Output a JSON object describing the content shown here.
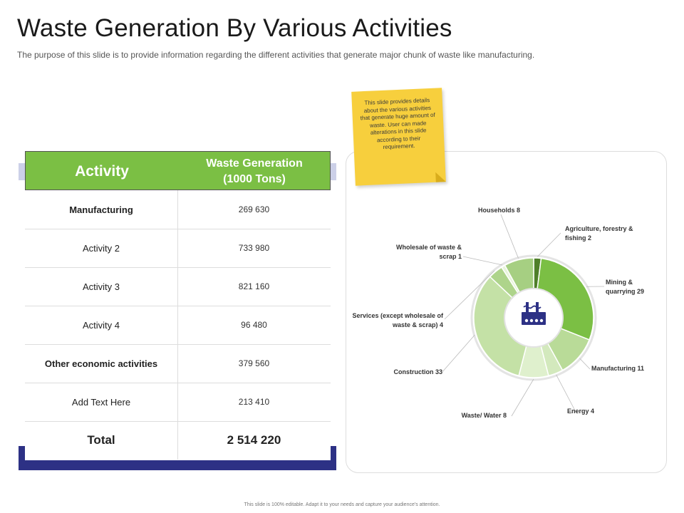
{
  "title": "Waste Generation By Various Activities",
  "subtitle": "The purpose of this slide is to provide information regarding the different activities that generate major chunk of waste like manufacturing.",
  "footer": "This slide is 100% editable. Adapt it to your needs and capture your audience's attention.",
  "note": "This slide provides details about the various activities that generate huge amount of waste. User can made alterations in this slide according to their requirement.",
  "table": {
    "headers": [
      "Activity",
      "Waste Generation\n(1000 Tons)"
    ],
    "rows": [
      {
        "activity": "Manufacturing",
        "value": "269 630",
        "bold": true
      },
      {
        "activity": "Activity 2",
        "value": "733 980",
        "bold": false
      },
      {
        "activity": "Activity 3",
        "value": "821 160",
        "bold": false
      },
      {
        "activity": "Activity 4",
        "value": "96 480",
        "bold": false
      },
      {
        "activity": "Other economic activities",
        "value": "379 560",
        "bold": true
      },
      {
        "activity": "Add Text Here",
        "value": "213 410",
        "bold": false
      }
    ],
    "total": {
      "label": "Total",
      "value": "2 514 220"
    }
  },
  "chart_data": {
    "type": "pie",
    "title": "",
    "slices": [
      {
        "label": "Agriculture, forestry & fishing",
        "value": 2,
        "text": "Agriculture, forestry &\nfishing 2",
        "color": "#4f7f2a"
      },
      {
        "label": "Mining & quarrying",
        "value": 29,
        "text": "Mining &\nquarrying 29",
        "color": "#7bbf44"
      },
      {
        "label": "Manufacturing",
        "value": 11,
        "text": "Manufacturing 11",
        "color": "#b9db98"
      },
      {
        "label": "Energy",
        "value": 4,
        "text": "Energy 4",
        "color": "#d3e9bd"
      },
      {
        "label": "Waste/ Water",
        "value": 8,
        "text": "Waste/ Water 8",
        "color": "#dff0cd"
      },
      {
        "label": "Construction",
        "value": 33,
        "text": "Construction 33",
        "color": "#c4e1a6"
      },
      {
        "label": "Services (except wholesale of waste & scrap)",
        "value": 4,
        "text": "Services (except wholesale of\nwaste & scrap) 4",
        "color": "#aed48b"
      },
      {
        "label": "Wholesale of waste & scrap",
        "value": 1,
        "text": "Wholesale of waste &\nscrap 1",
        "color": "#e8f4dc"
      },
      {
        "label": "Households",
        "value": 8,
        "text": "Households 8",
        "color": "#a6cf82"
      }
    ]
  },
  "colors": {
    "accent_green": "#7bbf44",
    "navy": "#2d3185",
    "note": "#f7cf3d"
  }
}
